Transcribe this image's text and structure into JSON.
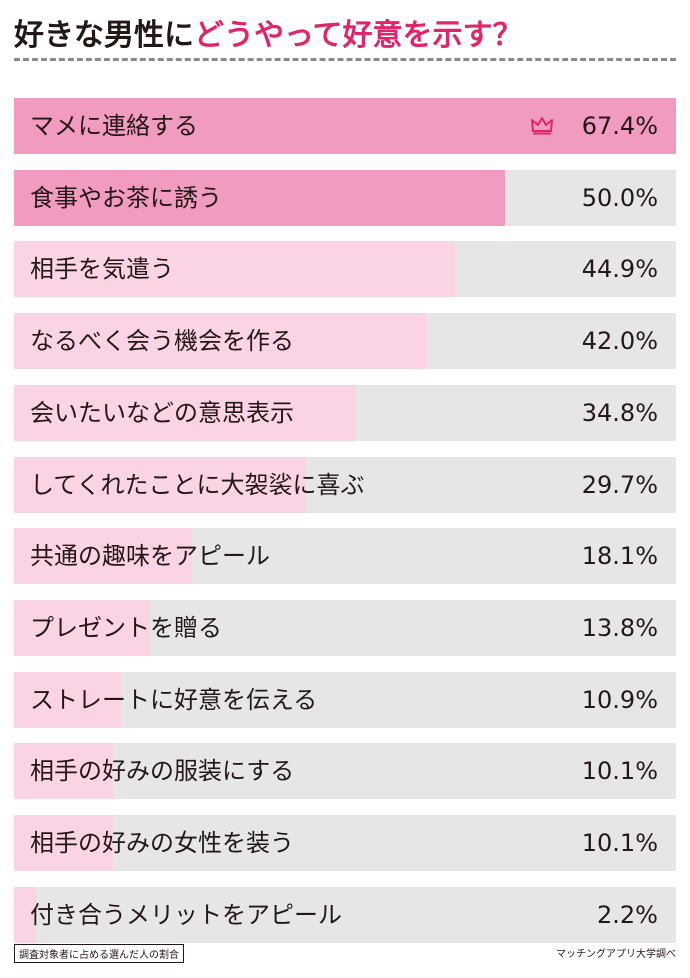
{
  "title": {
    "part1": "好きな男性に",
    "part2": "どうやって好意を示す？"
  },
  "footnote": "調査対象者に占める選んだ人の割合",
  "source": "マッチングアプリ大学調べ",
  "colors": {
    "top": "#f29bc1",
    "light": "#fad4e4",
    "track": "#e6e6e6",
    "accent": "#e0256c"
  },
  "chart_data": {
    "type": "bar",
    "orientation": "horizontal",
    "title": "好きな男性にどうやって好意を示す？",
    "xlim": [
      0,
      67.4
    ],
    "categories": [
      "マメに連絡する",
      "食事やお茶に誘う",
      "相手を気遣う",
      "なるべく会う機会を作る",
      "会いたいなどの意思表示",
      "してくれたことに大袈裟に喜ぶ",
      "共通の趣味をアピール",
      "プレゼントを贈る",
      "ストレートに好意を伝える",
      "相手の好みの服装にする",
      "相手の好みの女性を装う",
      "付き合うメリットをアピール"
    ],
    "values": [
      67.4,
      50.0,
      44.9,
      42.0,
      34.8,
      29.7,
      18.1,
      13.8,
      10.9,
      10.1,
      10.1,
      2.2
    ],
    "value_labels": [
      "67.4%",
      "50.0%",
      "44.9%",
      "42.0%",
      "34.8%",
      "29.7%",
      "18.1%",
      "13.8%",
      "10.9%",
      "10.1%",
      "10.1%",
      "2.2%"
    ],
    "highlight_top_n": 2,
    "top_icon": "crown-icon"
  }
}
